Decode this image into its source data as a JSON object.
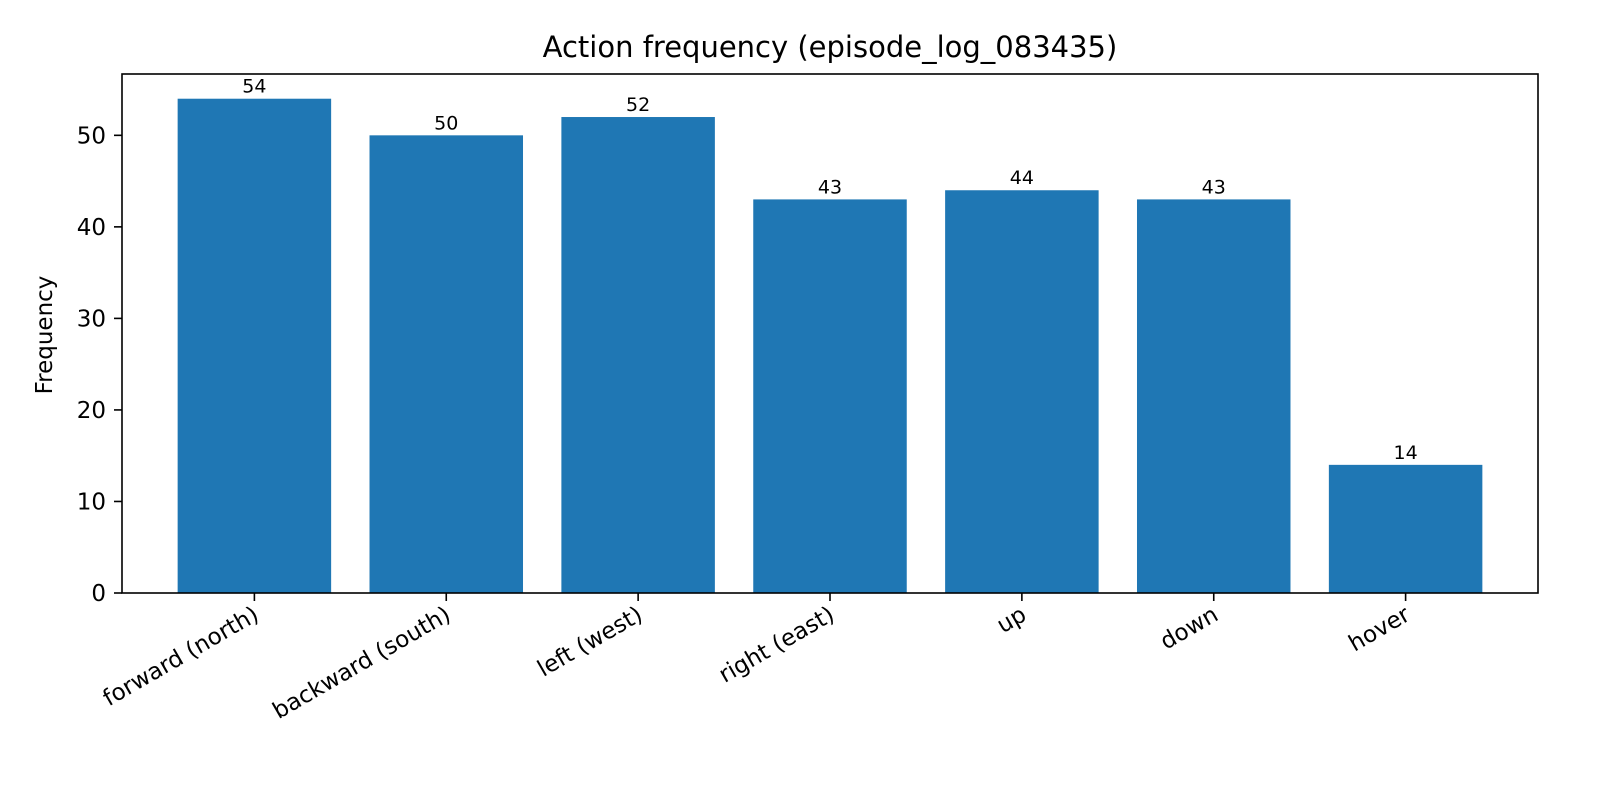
{
  "chart_data": {
    "type": "bar",
    "title": "Action frequency (episode_log_083435)",
    "xlabel": "",
    "ylabel": "Frequency",
    "categories": [
      "forward (north)",
      "backward (south)",
      "left (west)",
      "right (east)",
      "up",
      "down",
      "hover"
    ],
    "values": [
      54,
      50,
      52,
      43,
      44,
      43,
      14
    ],
    "ylim": [
      0,
      56.7
    ],
    "yticks": [
      0,
      10,
      20,
      30,
      40,
      50
    ],
    "grid": false,
    "legend": "none",
    "bar_color": "#1f77b4"
  }
}
